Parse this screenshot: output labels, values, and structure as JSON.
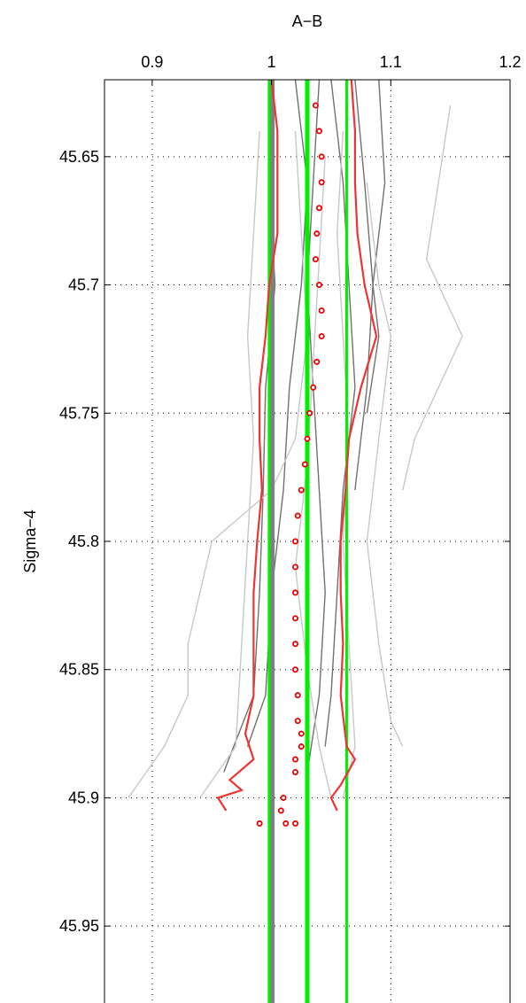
{
  "chart_data": {
    "type": "line",
    "xlabel": "A−B",
    "ylabel": "Sigma−4",
    "x_axis_position": "top",
    "y_axis_reversed": true,
    "xlim": [
      0.86,
      1.2
    ],
    "ylim": [
      45.62,
      45.98
    ],
    "x_ticks": [
      0.9,
      1.0,
      1.1,
      1.2
    ],
    "x_tick_labels": [
      "0.9",
      "1",
      "1.1",
      "1.2"
    ],
    "y_ticks": [
      45.65,
      45.7,
      45.75,
      45.8,
      45.85,
      45.9,
      45.95
    ],
    "y_tick_labels": [
      "45.65",
      "45.7",
      "45.75",
      "45.8",
      "45.85",
      "45.9",
      "45.95"
    ],
    "grid": true,
    "background_profiles": {
      "color_dark": "#707070",
      "color_light": "#c8c8c8",
      "profiles": [
        {
          "tone": "dark",
          "points": [
            [
              1.0,
              45.62
            ],
            [
              0.998,
              45.66
            ],
            [
              1.003,
              45.7
            ],
            [
              0.995,
              45.74
            ],
            [
              0.993,
              45.78
            ],
            [
              0.99,
              45.82
            ],
            [
              0.985,
              45.86
            ],
            [
              0.96,
              45.89
            ]
          ]
        },
        {
          "tone": "dark",
          "points": [
            [
              1.02,
              45.62
            ],
            [
              1.03,
              45.66
            ],
            [
              1.025,
              45.7
            ],
            [
              1.015,
              45.74
            ],
            [
              1.01,
              45.78
            ],
            [
              1.0,
              45.82
            ],
            [
              0.995,
              45.86
            ],
            [
              0.98,
              45.88
            ]
          ]
        },
        {
          "tone": "dark",
          "points": [
            [
              1.07,
              45.62
            ],
            [
              1.078,
              45.66
            ],
            [
              1.085,
              45.7
            ],
            [
              1.08,
              45.74
            ],
            [
              1.075,
              45.76
            ],
            [
              1.07,
              45.78
            ]
          ]
        },
        {
          "tone": "dark",
          "points": [
            [
              1.05,
              45.62
            ],
            [
              1.06,
              45.66
            ],
            [
              1.065,
              45.7
            ],
            [
              1.07,
              45.74
            ],
            [
              1.06,
              45.78
            ],
            [
              1.055,
              45.82
            ],
            [
              1.05,
              45.86
            ],
            [
              1.045,
              45.88
            ]
          ]
        },
        {
          "tone": "dark",
          "points": [
            [
              1.04,
              45.62
            ],
            [
              1.035,
              45.66
            ],
            [
              1.03,
              45.7
            ],
            [
              1.035,
              45.74
            ],
            [
              1.04,
              45.78
            ],
            [
              1.045,
              45.82
            ],
            [
              1.04,
              45.86
            ],
            [
              1.03,
              45.89
            ]
          ]
        },
        {
          "tone": "dark",
          "points": [
            [
              1.09,
              45.62
            ],
            [
              1.095,
              45.66
            ],
            [
              1.085,
              45.7
            ],
            [
              1.09,
              45.72
            ],
            [
              1.08,
              45.75
            ]
          ]
        },
        {
          "tone": "light",
          "points": [
            [
              1.15,
              45.63
            ],
            [
              1.14,
              45.66
            ],
            [
              1.13,
              45.69
            ],
            [
              1.16,
              45.72
            ],
            [
              1.14,
              45.74
            ],
            [
              1.12,
              45.76
            ],
            [
              1.11,
              45.78
            ]
          ]
        },
        {
          "tone": "light",
          "points": [
            [
              1.02,
              45.64
            ],
            [
              1.025,
              45.68
            ],
            [
              1.03,
              45.72
            ],
            [
              1.02,
              45.76
            ],
            [
              1.0,
              45.78
            ],
            [
              0.95,
              45.8
            ],
            [
              0.93,
              45.84
            ],
            [
              0.93,
              45.86
            ],
            [
              0.91,
              45.88
            ],
            [
              0.88,
              45.9
            ]
          ]
        },
        {
          "tone": "light",
          "points": [
            [
              1.06,
              45.64
            ],
            [
              1.055,
              45.68
            ],
            [
              1.06,
              45.72
            ],
            [
              1.065,
              45.76
            ],
            [
              1.06,
              45.8
            ],
            [
              1.065,
              45.84
            ],
            [
              1.07,
              45.88
            ],
            [
              1.06,
              45.9
            ]
          ]
        },
        {
          "tone": "light",
          "points": [
            [
              0.99,
              45.64
            ],
            [
              0.985,
              45.68
            ],
            [
              0.98,
              45.72
            ],
            [
              0.985,
              45.76
            ],
            [
              0.98,
              45.8
            ],
            [
              0.975,
              45.84
            ],
            [
              0.97,
              45.88
            ],
            [
              0.94,
              45.9
            ]
          ]
        },
        {
          "tone": "light",
          "points": [
            [
              1.045,
              45.65
            ],
            [
              1.04,
              45.69
            ],
            [
              1.035,
              45.73
            ],
            [
              1.03,
              45.77
            ],
            [
              1.02,
              45.81
            ],
            [
              1.03,
              45.85
            ],
            [
              1.04,
              45.88
            ],
            [
              1.05,
              45.9
            ]
          ]
        },
        {
          "tone": "light",
          "points": [
            [
              1.08,
              45.66
            ],
            [
              1.09,
              45.7
            ],
            [
              1.1,
              45.72
            ],
            [
              1.09,
              45.76
            ],
            [
              1.08,
              45.8
            ],
            [
              1.09,
              45.84
            ],
            [
              1.1,
              45.87
            ],
            [
              1.11,
              45.88
            ]
          ]
        }
      ]
    },
    "reference_lines": {
      "gray_x": 1.0,
      "green_x": [
        0.998,
        1.03,
        1.063
      ],
      "gray_color": "#808080",
      "green_color": "#00ee00"
    },
    "bounds": {
      "color": "#ee3333",
      "lower": [
        [
          1.0,
          45.62
        ],
        [
          1.005,
          45.64
        ],
        [
          1.005,
          45.66
        ],
        [
          1.005,
          45.68
        ],
        [
          0.998,
          45.7
        ],
        [
          0.995,
          45.72
        ],
        [
          0.99,
          45.74
        ],
        [
          0.99,
          45.76
        ],
        [
          0.992,
          45.78
        ],
        [
          0.988,
          45.8
        ],
        [
          0.985,
          45.82
        ],
        [
          0.985,
          45.84
        ],
        [
          0.985,
          45.86
        ],
        [
          0.978,
          45.875
        ],
        [
          0.985,
          45.885
        ],
        [
          0.965,
          45.893
        ],
        [
          0.975,
          45.897
        ],
        [
          0.955,
          45.9
        ],
        [
          0.962,
          45.905
        ]
      ],
      "upper": [
        [
          1.067,
          45.62
        ],
        [
          1.07,
          45.64
        ],
        [
          1.07,
          45.66
        ],
        [
          1.072,
          45.68
        ],
        [
          1.078,
          45.7
        ],
        [
          1.088,
          45.72
        ],
        [
          1.075,
          45.74
        ],
        [
          1.065,
          45.76
        ],
        [
          1.062,
          45.78
        ],
        [
          1.058,
          45.8
        ],
        [
          1.058,
          45.82
        ],
        [
          1.06,
          45.84
        ],
        [
          1.058,
          45.86
        ],
        [
          1.063,
          45.88
        ],
        [
          1.07,
          45.885
        ],
        [
          1.058,
          45.895
        ],
        [
          1.05,
          45.9
        ],
        [
          1.055,
          45.905
        ]
      ]
    },
    "mean_points": {
      "color": "#ee0000",
      "points": [
        [
          1.037,
          45.63
        ],
        [
          1.04,
          45.64
        ],
        [
          1.042,
          45.65
        ],
        [
          1.042,
          45.66
        ],
        [
          1.04,
          45.67
        ],
        [
          1.038,
          45.68
        ],
        [
          1.037,
          45.69
        ],
        [
          1.04,
          45.7
        ],
        [
          1.042,
          45.71
        ],
        [
          1.042,
          45.72
        ],
        [
          1.038,
          45.73
        ],
        [
          1.035,
          45.74
        ],
        [
          1.032,
          45.75
        ],
        [
          1.03,
          45.76
        ],
        [
          1.028,
          45.77
        ],
        [
          1.025,
          45.78
        ],
        [
          1.022,
          45.79
        ],
        [
          1.02,
          45.8
        ],
        [
          1.02,
          45.81
        ],
        [
          1.02,
          45.82
        ],
        [
          1.02,
          45.83
        ],
        [
          1.02,
          45.84
        ],
        [
          1.02,
          45.85
        ],
        [
          1.022,
          45.86
        ],
        [
          1.022,
          45.87
        ],
        [
          1.025,
          45.875
        ],
        [
          1.025,
          45.88
        ],
        [
          1.02,
          45.885
        ],
        [
          1.02,
          45.89
        ],
        [
          1.01,
          45.9
        ],
        [
          1.008,
          45.905
        ],
        [
          1.012,
          45.91
        ],
        [
          1.02,
          45.91
        ],
        [
          0.99,
          45.91
        ]
      ]
    }
  }
}
